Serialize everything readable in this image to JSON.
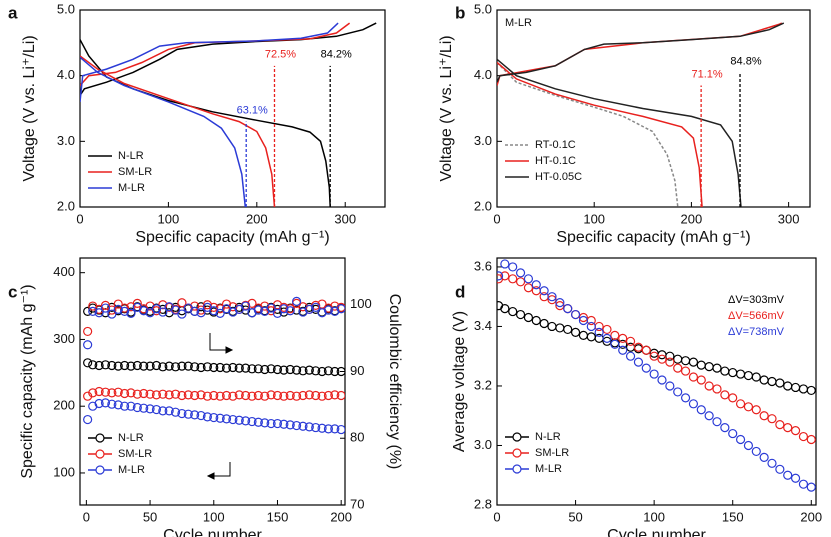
{
  "chart_data": [
    {
      "type": "line",
      "label": "a",
      "xlabel": "Specific capacity (mAh g⁻¹)",
      "ylabel": "Voltage (V vs. Li⁺/Li)",
      "xlim": [
        0,
        345
      ],
      "xticks": [
        0,
        100,
        200,
        300
      ],
      "ylim": [
        2,
        5
      ],
      "yticks": [
        {
          "value": 2,
          "label": "2.0"
        },
        {
          "value": 3,
          "label": "3.0"
        },
        {
          "value": 4,
          "label": "4.0"
        },
        {
          "value": 5,
          "label": "5.0"
        }
      ],
      "legend": "lower left",
      "series": [
        {
          "name": "N-LR",
          "color": "#000000",
          "curves": [
            {
              "x": [
                0,
                10,
                30,
                60,
                100,
                150,
                200,
                240,
                260,
                272,
                278,
                282,
                283
              ],
              "values": [
                4.55,
                4.3,
                3.98,
                3.8,
                3.62,
                3.45,
                3.32,
                3.22,
                3.14,
                3.0,
                2.7,
                2.3,
                2.0
              ]
            },
            {
              "x": [
                0,
                5,
                30,
                60,
                90,
                110,
                150,
                200,
                250,
                290,
                320,
                335
              ],
              "values": [
                3.7,
                3.8,
                3.9,
                4.05,
                4.25,
                4.4,
                4.48,
                4.52,
                4.55,
                4.6,
                4.7,
                4.8
              ]
            }
          ]
        },
        {
          "name": "SM-LR",
          "color": "#e8211e",
          "curves": [
            {
              "x": [
                0,
                20,
                50,
                100,
                150,
                180,
                200,
                210,
                217,
                220
              ],
              "values": [
                4.3,
                4.1,
                3.88,
                3.65,
                3.42,
                3.3,
                3.15,
                2.9,
                2.5,
                2.0
              ]
            },
            {
              "x": [
                0,
                10,
                40,
                70,
                100,
                130,
                200,
                260,
                290,
                305
              ],
              "values": [
                3.85,
                4.0,
                4.05,
                4.2,
                4.4,
                4.5,
                4.53,
                4.56,
                4.65,
                4.8
              ]
            }
          ]
        },
        {
          "name": "M-LR",
          "color": "#2b3bd6",
          "curves": [
            {
              "x": [
                0,
                20,
                50,
                100,
                140,
                160,
                175,
                183,
                187
              ],
              "values": [
                4.28,
                4.05,
                3.85,
                3.6,
                3.38,
                3.2,
                2.9,
                2.5,
                2.0
              ]
            },
            {
              "x": [
                0,
                3,
                30,
                60,
                90,
                120,
                200,
                250,
                280,
                292
              ],
              "values": [
                3.6,
                4.0,
                4.1,
                4.25,
                4.45,
                4.5,
                4.53,
                4.57,
                4.65,
                4.8
              ]
            }
          ]
        }
      ],
      "annotations": [
        {
          "text": "84.2%",
          "x": 283,
          "y": 4.15,
          "color": "#000000"
        },
        {
          "text": "72.5%",
          "x": 220,
          "y": 4.15,
          "color": "#e8211e"
        },
        {
          "text": "63.1%",
          "x": 188,
          "y": 3.3,
          "color": "#2b3bd6"
        }
      ]
    },
    {
      "type": "line",
      "label": "b",
      "inset_label": "M-LR",
      "xlabel": "Specific capacity (mAh g⁻¹)",
      "ylabel": "Voltage (V vs. Li⁺/Li)",
      "xlim": [
        0,
        322
      ],
      "xticks": [
        0,
        100,
        200,
        300
      ],
      "ylim": [
        2,
        5
      ],
      "yticks": [
        {
          "value": 2,
          "label": "2.0"
        },
        {
          "value": 3,
          "label": "3.0"
        },
        {
          "value": 4,
          "label": "4.0"
        },
        {
          "value": 5,
          "label": "5.0"
        }
      ],
      "legend": "lower left",
      "series": [
        {
          "name": "RT-0.1C",
          "color": "#888888",
          "dash": true,
          "curves": [
            {
              "x": [
                0,
                20,
                60,
                100,
                130,
                160,
                175,
                183,
                186
              ],
              "values": [
                4.2,
                3.9,
                3.7,
                3.52,
                3.38,
                3.15,
                2.8,
                2.4,
                2.0
              ]
            }
          ]
        },
        {
          "name": "HT-0.1C",
          "color": "#e8211e",
          "curves": [
            {
              "x": [
                0,
                20,
                60,
                100,
                150,
                190,
                202,
                208,
                211
              ],
              "values": [
                4.2,
                3.95,
                3.72,
                3.55,
                3.38,
                3.22,
                3.05,
                2.6,
                2.0
              ]
            },
            {
              "x": [
                0,
                3,
                60,
                90,
                150,
                250,
                290,
                293
              ],
              "values": [
                3.85,
                4.0,
                4.15,
                4.4,
                4.5,
                4.6,
                4.78,
                4.8
              ]
            }
          ]
        },
        {
          "name": "HT-0.05C",
          "color": "#222222",
          "curves": [
            {
              "x": [
                0,
                20,
                60,
                100,
                150,
                200,
                230,
                242,
                248,
                251
              ],
              "values": [
                4.25,
                4.0,
                3.8,
                3.65,
                3.5,
                3.38,
                3.25,
                3.0,
                2.5,
                2.0
              ]
            },
            {
              "x": [
                0,
                3,
                30,
                60,
                90,
                110,
                150,
                200,
                250,
                280,
                295
              ],
              "values": [
                3.9,
                4.0,
                4.05,
                4.15,
                4.4,
                4.48,
                4.5,
                4.55,
                4.6,
                4.7,
                4.8
              ]
            }
          ]
        }
      ],
      "annotations": [
        {
          "text": "71.1%",
          "x": 210,
          "y": 3.85,
          "color": "#e8211e"
        },
        {
          "text": "84.8%",
          "x": 250,
          "y": 4.05,
          "color": "#000000"
        }
      ]
    },
    {
      "type": "scatter",
      "label": "c",
      "xlabel": "Cycle number",
      "ylabel": "Specific capacity (mAh g⁻¹)",
      "y2label": "Coulombic efficiency (%)",
      "xlim": [
        -5,
        203
      ],
      "xticks": [
        0,
        50,
        100,
        150,
        200
      ],
      "ylim": [
        52,
        422
      ],
      "yticks": [
        100,
        200,
        300,
        400
      ],
      "y2lim": [
        70,
        107
      ],
      "y2ticks": [
        70,
        80,
        90,
        100
      ],
      "legend": "lower left",
      "x": [
        1,
        5,
        10,
        15,
        20,
        25,
        30,
        35,
        40,
        45,
        50,
        55,
        60,
        65,
        70,
        75,
        80,
        85,
        90,
        95,
        100,
        105,
        110,
        115,
        120,
        125,
        130,
        135,
        140,
        145,
        150,
        155,
        160,
        165,
        170,
        175,
        180,
        185,
        190,
        195,
        200
      ],
      "series": [
        {
          "name": "N-LR",
          "color": "#000000",
          "values": [
            265,
            262,
            261,
            262,
            261,
            260,
            261,
            260,
            261,
            260,
            260,
            261,
            259,
            260,
            259,
            260,
            260,
            259,
            258,
            259,
            258,
            258,
            257,
            258,
            257,
            257,
            256,
            256,
            255,
            256,
            255,
            254,
            255,
            254,
            253,
            254,
            253,
            252,
            253,
            252,
            252
          ]
        },
        {
          "name": "SM-LR",
          "color": "#e8211e",
          "values": [
            215,
            220,
            222,
            221,
            220,
            221,
            219,
            220,
            218,
            219,
            218,
            217,
            218,
            217,
            218,
            216,
            217,
            216,
            217,
            215,
            216,
            215,
            216,
            215,
            217,
            216,
            215,
            216,
            215,
            217,
            216,
            215,
            216,
            215,
            216,
            217,
            216,
            215,
            216,
            217,
            216
          ]
        },
        {
          "name": "M-LR",
          "color": "#2b3bd6",
          "values": [
            180,
            200,
            204,
            205,
            203,
            202,
            200,
            200,
            198,
            197,
            196,
            195,
            193,
            193,
            191,
            189,
            188,
            187,
            186,
            184,
            183,
            182,
            181,
            180,
            179,
            178,
            177,
            176,
            175,
            174,
            174,
            173,
            172,
            171,
            170,
            169,
            168,
            167,
            166,
            166,
            165
          ]
        },
        {
          "color": "#000000",
          "axis": "y2",
          "values": [
            99,
            99.5,
            99.2,
            98.8,
            99.6,
            99.1,
            99.4,
            98.9,
            99.7,
            99.2,
            99.0,
            99.5,
            99.3,
            98.8,
            99.6,
            99.1,
            99.4,
            99.0,
            99.7,
            99.2,
            98.9,
            99.5,
            99.3,
            99.0,
            99.6,
            99.2,
            98.8,
            99.4,
            99.1,
            99.6,
            99.3,
            98.9,
            99.5,
            99.2,
            99.0,
            99.6,
            99.3,
            98.9,
            99.4,
            99.1,
            99.5
          ]
        },
        {
          "color": "#e8211e",
          "axis": "y2",
          "values": [
            96,
            99.8,
            99.3,
            99.9,
            99.2,
            100.1,
            99.5,
            99.7,
            100.2,
            99.4,
            99.8,
            99.1,
            100.0,
            99.6,
            99.3,
            100.3,
            99.5,
            99.8,
            99.2,
            100.0,
            99.6,
            99.4,
            100.1,
            99.7,
            99.3,
            99.9,
            100.2,
            99.5,
            99.8,
            99.1,
            100.0,
            99.6,
            99.4,
            100.2,
            99.7,
            99.3,
            99.9,
            100.1,
            99.5,
            99.8,
            99.6
          ]
        },
        {
          "color": "#2b3bd6",
          "axis": "y2",
          "values": [
            94,
            99.0,
            98.8,
            99.5,
            98.6,
            99.3,
            99.0,
            98.7,
            99.6,
            99.1,
            98.8,
            99.4,
            98.9,
            99.7,
            99.2,
            98.6,
            99.5,
            99.0,
            98.8,
            99.6,
            99.1,
            98.7,
            99.4,
            98.9,
            99.3,
            99.8,
            98.8,
            99.2,
            99.0,
            99.5,
            98.7,
            99.4,
            99.1,
            100.5,
            98.9,
            99.3,
            99.6,
            98.8,
            99.2,
            99.0,
            99.4
          ]
        }
      ]
    },
    {
      "type": "scatter",
      "label": "d",
      "xlabel": "Cycle number",
      "ylabel": "Average voltage (V)",
      "xlim": [
        0,
        203
      ],
      "xticks": [
        0,
        50,
        100,
        150,
        200
      ],
      "ylim": [
        2.8,
        3.63
      ],
      "yticks": [
        2.8,
        {
          "value": 3,
          "label": "3.0"
        },
        3.2,
        3.4,
        3.6
      ],
      "legend": "lower left",
      "x": [
        1,
        5,
        10,
        15,
        20,
        25,
        30,
        35,
        40,
        45,
        50,
        55,
        60,
        65,
        70,
        75,
        80,
        85,
        90,
        95,
        100,
        105,
        110,
        115,
        120,
        125,
        130,
        135,
        140,
        145,
        150,
        155,
        160,
        165,
        170,
        175,
        180,
        185,
        190,
        195,
        200
      ],
      "series": [
        {
          "name": "N-LR",
          "color": "#000000",
          "values": [
            3.47,
            3.46,
            3.45,
            3.44,
            3.43,
            3.42,
            3.41,
            3.4,
            3.395,
            3.39,
            3.38,
            3.37,
            3.365,
            3.36,
            3.35,
            3.345,
            3.34,
            3.33,
            3.325,
            3.32,
            3.31,
            3.305,
            3.3,
            3.29,
            3.285,
            3.28,
            3.27,
            3.265,
            3.26,
            3.25,
            3.245,
            3.24,
            3.235,
            3.23,
            3.22,
            3.215,
            3.21,
            3.2,
            3.195,
            3.19,
            3.185
          ]
        },
        {
          "name": "SM-LR",
          "color": "#e8211e",
          "values": [
            3.56,
            3.57,
            3.56,
            3.55,
            3.53,
            3.52,
            3.5,
            3.49,
            3.47,
            3.46,
            3.44,
            3.43,
            3.42,
            3.4,
            3.39,
            3.37,
            3.36,
            3.35,
            3.33,
            3.32,
            3.3,
            3.29,
            3.28,
            3.26,
            3.25,
            3.23,
            3.22,
            3.2,
            3.19,
            3.17,
            3.16,
            3.14,
            3.13,
            3.12,
            3.1,
            3.09,
            3.07,
            3.06,
            3.05,
            3.03,
            3.02
          ]
        },
        {
          "name": "M-LR",
          "color": "#2b3bd6",
          "values": [
            3.57,
            3.61,
            3.6,
            3.58,
            3.56,
            3.54,
            3.52,
            3.5,
            3.48,
            3.46,
            3.44,
            3.42,
            3.4,
            3.38,
            3.36,
            3.34,
            3.32,
            3.3,
            3.28,
            3.26,
            3.24,
            3.22,
            3.2,
            3.18,
            3.16,
            3.14,
            3.12,
            3.1,
            3.08,
            3.06,
            3.04,
            3.02,
            3.0,
            2.98,
            2.96,
            2.94,
            2.92,
            2.9,
            2.89,
            2.87,
            2.86
          ]
        }
      ],
      "annotations": [
        {
          "text": "ΔV=303mV",
          "color": "#000000"
        },
        {
          "text": "ΔV=566mV",
          "color": "#e8211e"
        },
        {
          "text": "ΔV=738mV",
          "color": "#2b3bd6"
        }
      ]
    }
  ]
}
